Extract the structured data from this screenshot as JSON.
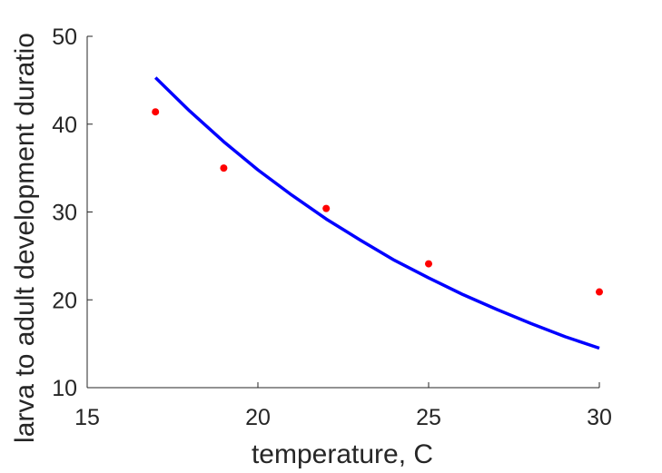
{
  "chart_data": {
    "type": "scatter",
    "title": "",
    "xlabel": "temperature, C",
    "ylabel": "larva to adult development duratio",
    "xlim": [
      15,
      30
    ],
    "ylim": [
      10,
      50
    ],
    "x_ticks": [
      15,
      20,
      25,
      30
    ],
    "y_ticks": [
      10,
      20,
      30,
      40,
      50
    ],
    "x_tick_labels": [
      "15",
      "20",
      "25",
      "30"
    ],
    "y_tick_labels": [
      "10",
      "20",
      "30",
      "40",
      "50"
    ],
    "grid": false,
    "series": [
      {
        "type": "scatter",
        "color": "#ff0000",
        "x": [
          17,
          19,
          22,
          25,
          30
        ],
        "y": [
          41.4,
          35.0,
          30.4,
          24.1,
          20.9
        ]
      },
      {
        "type": "line",
        "color": "#0000ff",
        "x": [
          17,
          18,
          19,
          20,
          21,
          22,
          23,
          24,
          25,
          26,
          27,
          28,
          29,
          30
        ],
        "y": [
          45.3,
          41.5,
          38.0,
          34.8,
          31.9,
          29.2,
          26.8,
          24.5,
          22.5,
          20.6,
          18.9,
          17.3,
          15.8,
          14.5
        ]
      }
    ]
  }
}
